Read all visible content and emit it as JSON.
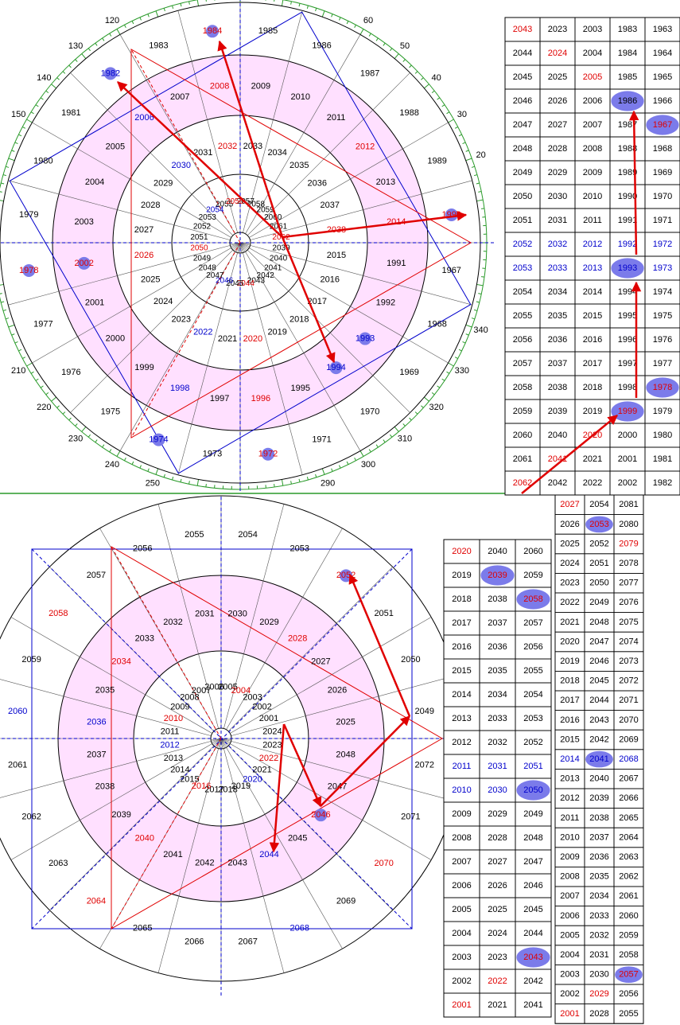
{
  "top_wheel": {
    "degree_labels": [
      20,
      30,
      40,
      50,
      60,
      120,
      130,
      140,
      150,
      210,
      220,
      230,
      240,
      250,
      290,
      300,
      310,
      320,
      330,
      340
    ],
    "rings": [
      {
        "labels": [
          1985,
          1986,
          1987,
          1988,
          1989,
          {
            "text": 1990,
            "color": "red",
            "dot": true
          },
          1967,
          1968,
          1969,
          1970,
          1971,
          {
            "text": 1972,
            "color": "red",
            "dot": true
          },
          1973,
          {
            "text": 1974,
            "color": "blue",
            "dot": true
          },
          1975,
          1976,
          1977,
          {
            "text": 1978,
            "color": "red",
            "dot": true
          },
          1979,
          1980,
          1981,
          {
            "text": 1982,
            "color": "blue",
            "dot": true
          },
          1983,
          {
            "text": 1984,
            "color": "red",
            "dot": true
          }
        ]
      },
      {
        "labels": [
          2009,
          2010,
          2011,
          {
            "text": 2012,
            "color": "red"
          },
          2013,
          {
            "text": 2014,
            "color": "red"
          },
          1991,
          1992,
          {
            "text": 1993,
            "color": "blue",
            "dot": true
          },
          {
            "text": 1994,
            "color": "blue",
            "dot": true
          },
          1995,
          {
            "text": 1996,
            "color": "red"
          },
          1997,
          {
            "text": 1998,
            "color": "blue"
          },
          1999,
          2000,
          2001,
          {
            "text": 2002,
            "color": "red",
            "dot": true
          },
          2003,
          2004,
          2005,
          {
            "text": 2006,
            "color": "blue"
          },
          2007,
          {
            "text": 2008,
            "color": "red"
          }
        ]
      },
      {
        "labels": [
          2033,
          2034,
          2035,
          2036,
          2037,
          {
            "text": 2038,
            "color": "red"
          },
          2015,
          2016,
          2017,
          2018,
          2019,
          {
            "text": 2020,
            "color": "red"
          },
          2021,
          {
            "text": 2022,
            "color": "blue"
          },
          2023,
          2024,
          2025,
          {
            "text": 2026,
            "color": "red"
          },
          2027,
          2028,
          2029,
          {
            "text": 2030,
            "color": "blue"
          },
          2031,
          {
            "text": 2032,
            "color": "red"
          }
        ]
      },
      {
        "labels": [
          2057,
          2058,
          2059,
          2060,
          2061,
          {
            "text": 2062,
            "color": "red"
          },
          2039,
          2040,
          2041,
          2042,
          2043,
          {
            "text": 2044,
            "color": "red"
          },
          2045,
          {
            "text": 2046,
            "color": "blue"
          },
          2047,
          2048,
          2049,
          {
            "text": 2050,
            "color": "red"
          },
          2051,
          2052,
          2053,
          {
            "text": 2054,
            "color": "blue"
          },
          2055,
          {
            "text": 2056,
            "color": "red"
          }
        ]
      }
    ]
  },
  "top_table": {
    "rows": [
      [
        {
          "text": 2043,
          "color": "red"
        },
        2023,
        2003,
        1983,
        1963
      ],
      [
        2044,
        {
          "text": 2024,
          "color": "red"
        },
        2004,
        1984,
        1964
      ],
      [
        2045,
        2025,
        {
          "text": 2005,
          "color": "red"
        },
        1985,
        1965
      ],
      [
        2046,
        2026,
        2006,
        {
          "text": 1986,
          "oval": true
        },
        1966
      ],
      [
        2047,
        2027,
        2007,
        1987,
        {
          "text": 1967,
          "color": "red",
          "oval": true
        }
      ],
      [
        2048,
        2028,
        2008,
        1988,
        1968
      ],
      [
        2049,
        2029,
        2009,
        1989,
        1969
      ],
      [
        2050,
        2030,
        2010,
        1990,
        1970
      ],
      [
        2051,
        2031,
        2011,
        1991,
        1971
      ],
      [
        {
          "text": 2052,
          "color": "blue"
        },
        {
          "text": 2032,
          "color": "blue"
        },
        {
          "text": 2012,
          "color": "blue"
        },
        {
          "text": 1992,
          "color": "blue"
        },
        {
          "text": 1972,
          "color": "blue"
        }
      ],
      [
        {
          "text": 2053,
          "color": "blue"
        },
        {
          "text": 2033,
          "color": "blue"
        },
        {
          "text": 2013,
          "color": "blue"
        },
        {
          "text": 1993,
          "color": "blue",
          "oval": true
        },
        {
          "text": 1973,
          "color": "blue"
        }
      ],
      [
        2054,
        2034,
        2014,
        1994,
        1974
      ],
      [
        2055,
        2035,
        2015,
        1995,
        1975
      ],
      [
        2056,
        2036,
        2016,
        1996,
        1976
      ],
      [
        2057,
        2037,
        2017,
        1997,
        1977
      ],
      [
        2058,
        2038,
        2018,
        1998,
        {
          "text": 1978,
          "color": "red",
          "oval": true
        }
      ],
      [
        2059,
        2039,
        2019,
        {
          "text": 1999,
          "color": "red",
          "oval": true
        },
        1979
      ],
      [
        2060,
        2040,
        {
          "text": 2020,
          "color": "red"
        },
        2000,
        1980
      ],
      [
        2061,
        {
          "text": 2041,
          "color": "red"
        },
        2021,
        2001,
        1981
      ],
      [
        {
          "text": 2062,
          "color": "red"
        },
        2042,
        2022,
        2002,
        1982
      ]
    ]
  },
  "bottom_wheel": {
    "rings": [
      {
        "labels": [
          2054,
          2053,
          {
            "text": 2052,
            "color": "red",
            "dot": true
          },
          2051,
          2050,
          2049,
          2072,
          2071,
          {
            "text": 2070,
            "color": "red"
          },
          2069,
          {
            "text": 2068,
            "color": "blue"
          },
          2067,
          2066,
          2065,
          {
            "text": 2064,
            "color": "red"
          },
          2063,
          2062,
          2061,
          {
            "text": 2060,
            "color": "blue"
          },
          2059,
          {
            "text": 2058,
            "color": "red"
          },
          2057,
          2056,
          2055
        ]
      },
      {
        "labels": [
          2030,
          2029,
          {
            "text": 2028,
            "color": "red"
          },
          2027,
          2026,
          2025,
          2048,
          2047,
          {
            "text": 2046,
            "color": "red",
            "dot": true
          },
          2045,
          {
            "text": 2044,
            "color": "blue"
          },
          2043,
          2042,
          2041,
          {
            "text": 2040,
            "color": "red"
          },
          2039,
          2038,
          2037,
          {
            "text": 2036,
            "color": "blue"
          },
          2035,
          {
            "text": 2034,
            "color": "red"
          },
          2033,
          2032,
          2031
        ]
      },
      {
        "labels": [
          2005,
          {
            "text": 2004,
            "color": "red"
          },
          2003,
          2002,
          2001,
          2024,
          2023,
          {
            "text": 2022,
            "color": "red"
          },
          2021,
          {
            "text": 2020,
            "color": "blue"
          },
          2019,
          2018,
          2017,
          {
            "text": 2016,
            "color": "red"
          },
          2015,
          2014,
          2013,
          {
            "text": 2012,
            "color": "blue"
          },
          2011,
          {
            "text": 2010,
            "color": "red"
          },
          2009,
          2008,
          2007,
          2006
        ]
      }
    ]
  },
  "middle_table": {
    "rows": [
      [
        {
          "text": 2020,
          "color": "red"
        },
        2040,
        2060
      ],
      [
        2019,
        {
          "text": 2039,
          "color": "red",
          "oval": true
        },
        2059
      ],
      [
        2018,
        2038,
        {
          "text": 2058,
          "color": "red",
          "oval": true
        }
      ],
      [
        2017,
        2037,
        2057
      ],
      [
        2016,
        2036,
        2056
      ],
      [
        2015,
        2035,
        2055
      ],
      [
        2014,
        2034,
        2054
      ],
      [
        2013,
        2033,
        2053
      ],
      [
        2012,
        2032,
        2052
      ],
      [
        {
          "text": 2011,
          "color": "blue"
        },
        {
          "text": 2031,
          "color": "blue"
        },
        {
          "text": 2051,
          "color": "blue"
        }
      ],
      [
        {
          "text": 2010,
          "color": "blue"
        },
        {
          "text": 2030,
          "color": "blue"
        },
        {
          "text": 2050,
          "color": "blue",
          "oval": true
        }
      ],
      [
        2009,
        2029,
        2049
      ],
      [
        2008,
        2028,
        2048
      ],
      [
        2007,
        2027,
        2047
      ],
      [
        2006,
        2026,
        2046
      ],
      [
        2005,
        2025,
        2045
      ],
      [
        2004,
        2024,
        2044
      ],
      [
        2003,
        2023,
        {
          "text": 2043,
          "color": "red",
          "oval": true
        }
      ],
      [
        2002,
        {
          "text": 2022,
          "color": "red"
        },
        2042
      ],
      [
        {
          "text": 2001,
          "color": "red"
        },
        2021,
        2041
      ]
    ]
  },
  "right_table": {
    "rows": [
      [
        {
          "text": 2027,
          "color": "red"
        },
        2054,
        2081
      ],
      [
        2026,
        {
          "text": 2053,
          "color": "red",
          "oval": true
        },
        2080
      ],
      [
        2025,
        2052,
        {
          "text": 2079,
          "color": "red"
        }
      ],
      [
        2024,
        2051,
        2078
      ],
      [
        2023,
        2050,
        2077
      ],
      [
        2022,
        2049,
        2076
      ],
      [
        2021,
        2048,
        2075
      ],
      [
        2020,
        2047,
        2074
      ],
      [
        2019,
        2046,
        2073
      ],
      [
        2018,
        2045,
        2072
      ],
      [
        2017,
        2044,
        2071
      ],
      [
        2016,
        2043,
        2070
      ],
      [
        2015,
        2042,
        2069
      ],
      [
        {
          "text": 2014,
          "color": "blue"
        },
        {
          "text": 2041,
          "color": "blue",
          "oval": true
        },
        {
          "text": 2068,
          "color": "blue"
        }
      ],
      [
        2013,
        2040,
        2067
      ],
      [
        2012,
        2039,
        2066
      ],
      [
        2011,
        2038,
        2065
      ],
      [
        2010,
        2037,
        2064
      ],
      [
        2009,
        2036,
        2063
      ],
      [
        2008,
        2035,
        2062
      ],
      [
        2007,
        2034,
        2061
      ],
      [
        2006,
        2033,
        2060
      ],
      [
        2005,
        2032,
        2059
      ],
      [
        2004,
        2031,
        2058
      ],
      [
        2003,
        2030,
        {
          "text": 2057,
          "color": "red",
          "oval": true
        }
      ],
      [
        2002,
        {
          "text": 2029,
          "color": "red"
        },
        2056
      ],
      [
        {
          "text": 2001,
          "color": "red"
        },
        2028,
        2055
      ]
    ]
  }
}
